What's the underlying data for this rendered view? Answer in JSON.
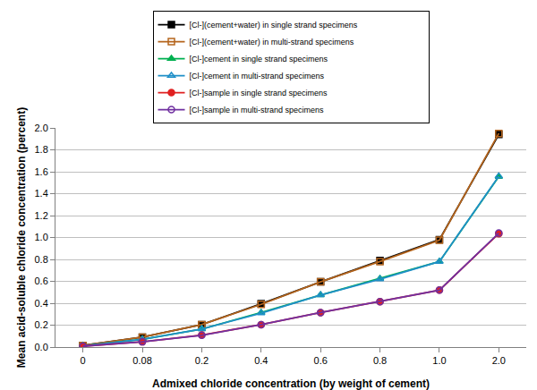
{
  "chart_data": {
    "type": "line",
    "x_label": "Admixed chloride concentration (by weight of cement)",
    "y_label": "Mean acid-soluble chloride concentration (percent)",
    "categories": [
      "0",
      "0.08",
      "0.2",
      "0.4",
      "0.6",
      "0.8",
      "1.0",
      "2.0"
    ],
    "series": [
      {
        "name": "[Cl-](cement+water) in single strand specimens",
        "color": "#000000",
        "marker": "square",
        "line_style": "solid",
        "values": [
          0.015,
          0.09,
          0.205,
          0.395,
          0.595,
          0.79,
          0.98,
          1.94
        ]
      },
      {
        "name": "[Cl-](cement+water) in multi-strand specimens",
        "color": "#b5651d",
        "marker": "square-open",
        "line_style": "solid",
        "values": [
          0.015,
          0.09,
          0.205,
          0.39,
          0.595,
          0.78,
          0.975,
          1.95
        ]
      },
      {
        "name": "[Cl-]cement in single strand specimens",
        "color": "#00b050",
        "marker": "triangle-up",
        "line_style": "solid",
        "values": [
          0.012,
          0.07,
          0.165,
          0.315,
          0.475,
          0.625,
          0.78,
          1.555
        ]
      },
      {
        "name": "[Cl-]cement in multi-strand specimens",
        "color": "#1f8fc8",
        "marker": "triangle-up-open",
        "line_style": "solid",
        "values": [
          0.012,
          0.07,
          0.165,
          0.31,
          0.475,
          0.62,
          0.78,
          1.56
        ]
      },
      {
        "name": "[Cl-]sample in single strand specimens",
        "color": "#e02020",
        "marker": "circle",
        "line_style": "solid",
        "values": [
          0.008,
          0.048,
          0.11,
          0.205,
          0.315,
          0.415,
          0.52,
          1.035
        ]
      },
      {
        "name": "[Cl-]sample in multi-strand specimens",
        "color": "#7030a0",
        "marker": "circle-open",
        "line_style": "solid",
        "values": [
          0.008,
          0.048,
          0.108,
          0.205,
          0.315,
          0.415,
          0.52,
          1.04
        ]
      }
    ],
    "ylim": [
      0,
      2
    ],
    "yticks": [
      {
        "value": 0,
        "label": "0.0"
      },
      0.2,
      0.4,
      0.6,
      0.8,
      {
        "value": 1,
        "label": "1.0"
      },
      1.2,
      1.4,
      1.6,
      1.8,
      {
        "value": 2,
        "label": "2.0"
      }
    ],
    "grid": true,
    "legend": "top"
  }
}
